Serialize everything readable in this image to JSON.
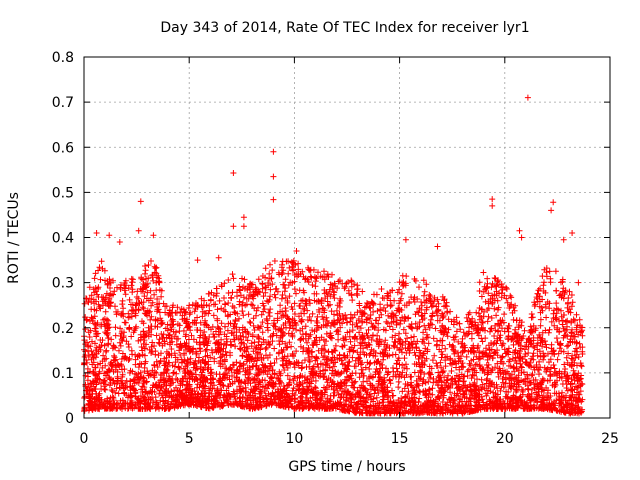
{
  "chart_data": {
    "type": "scatter",
    "title": "Day 343 of 2014, Rate Of TEC Index for receiver lyr1",
    "xlabel": "GPS time / hours",
    "ylabel": "ROTI / TECUs",
    "xlim": [
      0,
      25
    ],
    "ylim": [
      0,
      0.8
    ],
    "xticks": [
      0,
      5,
      10,
      15,
      20,
      25
    ],
    "xtick_labels": [
      "0",
      "5",
      "10",
      "15",
      "20",
      "25"
    ],
    "yticks": [
      0,
      0.1,
      0.2,
      0.3,
      0.4,
      0.5,
      0.6,
      0.7,
      0.8
    ],
    "ytick_labels": [
      "0",
      "0.1",
      "0.2",
      "0.3",
      "0.4",
      "0.5",
      "0.6",
      "0.7",
      "0.8"
    ],
    "grid": true,
    "marker": "+",
    "color": "#ff0000",
    "data_range": {
      "x_start": 0.0,
      "x_end": 23.7
    },
    "notable_points": [
      {
        "x": 21.1,
        "y": 0.71
      },
      {
        "x": 9.0,
        "y": 0.59
      },
      {
        "x": 9.0,
        "y": 0.535
      },
      {
        "x": 7.1,
        "y": 0.543
      },
      {
        "x": 9.0,
        "y": 0.484
      },
      {
        "x": 2.7,
        "y": 0.48
      },
      {
        "x": 19.4,
        "y": 0.485
      },
      {
        "x": 19.4,
        "y": 0.47
      },
      {
        "x": 22.3,
        "y": 0.478
      },
      {
        "x": 22.2,
        "y": 0.46
      },
      {
        "x": 7.6,
        "y": 0.445
      },
      {
        "x": 7.1,
        "y": 0.425
      },
      {
        "x": 7.6,
        "y": 0.425
      },
      {
        "x": 2.6,
        "y": 0.415
      },
      {
        "x": 0.6,
        "y": 0.41
      },
      {
        "x": 1.2,
        "y": 0.405
      },
      {
        "x": 3.3,
        "y": 0.405
      },
      {
        "x": 20.7,
        "y": 0.415
      },
      {
        "x": 20.8,
        "y": 0.4
      },
      {
        "x": 23.2,
        "y": 0.41
      },
      {
        "x": 15.3,
        "y": 0.395
      },
      {
        "x": 10.1,
        "y": 0.37
      },
      {
        "x": 16.8,
        "y": 0.38
      },
      {
        "x": 1.7,
        "y": 0.39
      },
      {
        "x": 22.8,
        "y": 0.395
      },
      {
        "x": 23.5,
        "y": 0.3
      },
      {
        "x": 5.4,
        "y": 0.35
      },
      {
        "x": 6.4,
        "y": 0.355
      }
    ],
    "density_profile": [
      {
        "x": 0.0,
        "low": 0.015,
        "high": 0.26
      },
      {
        "x": 0.8,
        "low": 0.02,
        "high": 0.36
      },
      {
        "x": 1.5,
        "low": 0.02,
        "high": 0.3
      },
      {
        "x": 2.5,
        "low": 0.02,
        "high": 0.32
      },
      {
        "x": 3.3,
        "low": 0.02,
        "high": 0.36
      },
      {
        "x": 4.0,
        "low": 0.02,
        "high": 0.25
      },
      {
        "x": 5.0,
        "low": 0.03,
        "high": 0.25
      },
      {
        "x": 6.0,
        "low": 0.02,
        "high": 0.28
      },
      {
        "x": 7.0,
        "low": 0.03,
        "high": 0.32
      },
      {
        "x": 8.0,
        "low": 0.02,
        "high": 0.3
      },
      {
        "x": 9.0,
        "low": 0.03,
        "high": 0.35
      },
      {
        "x": 10.0,
        "low": 0.02,
        "high": 0.36
      },
      {
        "x": 11.0,
        "low": 0.02,
        "high": 0.33
      },
      {
        "x": 12.0,
        "low": 0.02,
        "high": 0.32
      },
      {
        "x": 13.0,
        "low": 0.01,
        "high": 0.3
      },
      {
        "x": 14.0,
        "low": 0.01,
        "high": 0.28
      },
      {
        "x": 15.0,
        "low": 0.01,
        "high": 0.33
      },
      {
        "x": 16.0,
        "low": 0.01,
        "high": 0.31
      },
      {
        "x": 17.0,
        "low": 0.01,
        "high": 0.28
      },
      {
        "x": 18.0,
        "low": 0.01,
        "high": 0.2
      },
      {
        "x": 19.0,
        "low": 0.02,
        "high": 0.33
      },
      {
        "x": 20.0,
        "low": 0.02,
        "high": 0.3
      },
      {
        "x": 21.0,
        "low": 0.02,
        "high": 0.2
      },
      {
        "x": 22.0,
        "low": 0.02,
        "high": 0.35
      },
      {
        "x": 23.0,
        "low": 0.01,
        "high": 0.3
      },
      {
        "x": 23.7,
        "low": 0.01,
        "high": 0.2
      }
    ]
  }
}
